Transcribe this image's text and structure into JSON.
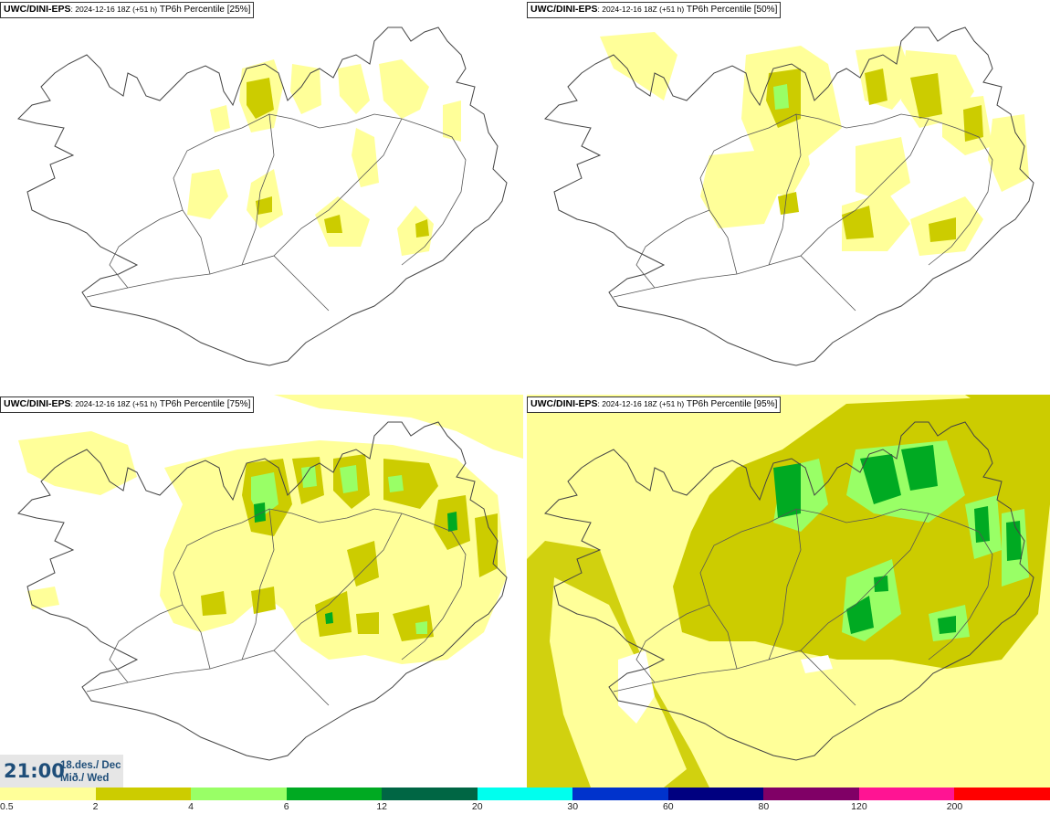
{
  "panels": [
    {
      "model": "UWC/DINI-EPS",
      "run": ": 2024-12-16 18Z (+51 h)",
      "field": " TP6h Percentile [25%]"
    },
    {
      "model": "UWC/DINI-EPS",
      "run": ": 2024-12-16 18Z (+51 h)",
      "field": " TP6h Percentile [50%]"
    },
    {
      "model": "UWC/DINI-EPS",
      "run": ": 2024-12-16 18Z (+51 h)",
      "field": " TP6h Percentile [75%]"
    },
    {
      "model": "UWC/DINI-EPS",
      "run": ": 2024-12-16 18Z (+51 h)",
      "field": " TP6h Percentile [95%]"
    }
  ],
  "valid_time": {
    "time": "21:00",
    "date_line": "18.des./ Dec",
    "day_line": "Mið./ Wed"
  },
  "colorbar": {
    "labels": [
      "0.5",
      "2",
      "4",
      "6",
      "12",
      "20",
      "30",
      "60",
      "80",
      "120",
      "200"
    ],
    "colors": [
      "#ffff99",
      "#cccc00",
      "#99ff66",
      "#00aa22",
      "#006644",
      "#00ffee",
      "#0033cc",
      "#000080",
      "#800066",
      "#ff1493",
      "#ff0000"
    ]
  },
  "precip_colors": {
    "light": "#ffff99",
    "moderate": "#cccc00",
    "heavy": "#99ff66",
    "very_heavy": "#00aa22"
  }
}
